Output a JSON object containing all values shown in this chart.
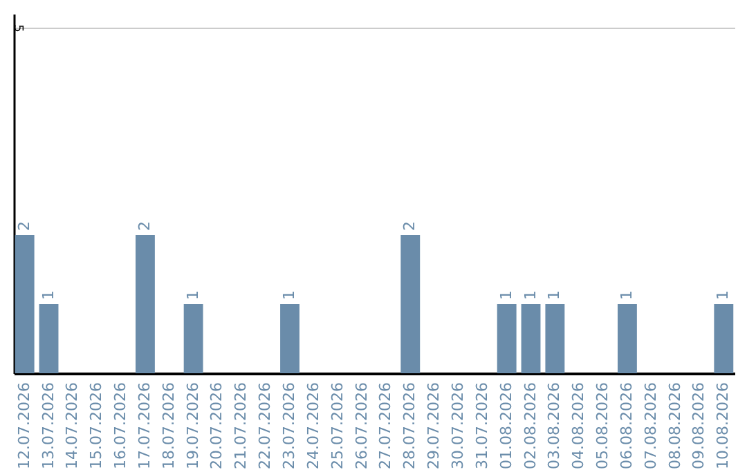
{
  "chart_data": {
    "type": "bar",
    "categories": [
      "12.07.2026",
      "13.07.2026",
      "14.07.2026",
      "15.07.2026",
      "16.07.2026",
      "17.07.2026",
      "18.07.2026",
      "19.07.2026",
      "20.07.2026",
      "21.07.2026",
      "22.07.2026",
      "23.07.2026",
      "24.07.2026",
      "25.07.2026",
      "26.07.2026",
      "27.07.2026",
      "28.07.2026",
      "29.07.2026",
      "30.07.2026",
      "31.07.2026",
      "01.08.2026",
      "02.08.2026",
      "03.08.2026",
      "04.08.2026",
      "05.08.2026",
      "06.08.2026",
      "07.08.2026",
      "08.08.2026",
      "09.08.2026",
      "10.08.2026"
    ],
    "values": [
      2,
      1,
      0,
      0,
      0,
      2,
      0,
      1,
      0,
      0,
      0,
      1,
      0,
      0,
      0,
      0,
      2,
      0,
      0,
      0,
      1,
      1,
      1,
      0,
      0,
      1,
      0,
      0,
      0,
      1
    ],
    "value_labels": [
      "2",
      "1",
      null,
      null,
      null,
      "2",
      null,
      "1",
      null,
      null,
      null,
      "1",
      null,
      null,
      null,
      null,
      "2",
      null,
      null,
      null,
      "1",
      "1",
      "1",
      null,
      null,
      "1",
      null,
      null,
      null,
      "1"
    ],
    "color": "#6a8caa",
    "ylim": [
      0,
      5.2
    ],
    "yticks": [
      5
    ],
    "grid": "y"
  }
}
